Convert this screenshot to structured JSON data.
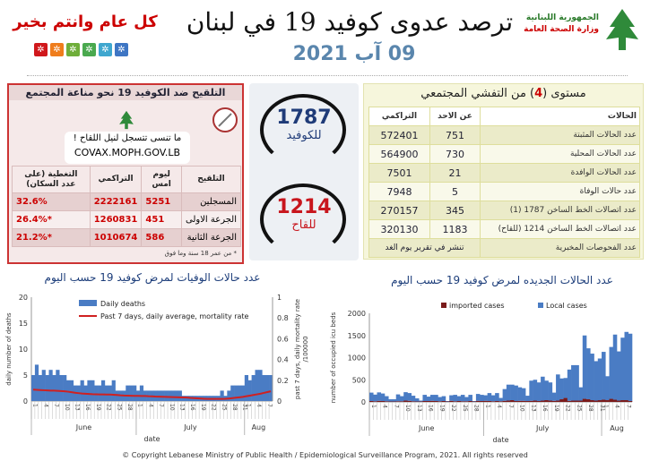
{
  "header": {
    "title": "ترصد عدوى كوفيد 19 في لبنان",
    "date": "09 آب 2021",
    "ministry_line1": "الجمهورية اللبنانية",
    "ministry_line2": "وزارة الصحة العامة",
    "greeting": "كل عام وانتم بخير",
    "square_colors": [
      "#d0181c",
      "#ef7d1c",
      "#6fae3a",
      "#4aa94f",
      "#3fa7cf",
      "#3e76c4"
    ]
  },
  "vaccination": {
    "title": "التلقيح ضد الكوفيد 19  نحو مناعة المجتمع",
    "promo_text": "ما تنسى تتسجل لنيل اللقاح !",
    "promo_url": "COVAX.MOPH.GOV.LB",
    "headers": [
      "التلقيح",
      "ليوم امس",
      "التراكمي",
      "التغطية (على عدد السكان)"
    ],
    "rows": [
      {
        "label": "المسجلين",
        "yesterday": "5251",
        "cumulative": "2222161",
        "coverage": "32.6%"
      },
      {
        "label": "الجرعة الاولى",
        "yesterday": "451",
        "cumulative": "1260831",
        "coverage": "*26.4%"
      },
      {
        "label": "الجرعة الثانية",
        "yesterday": "586",
        "cumulative": "1010674",
        "coverage": "*21.2%"
      }
    ],
    "footnote": "* من عمر 18 سنة وما فوق"
  },
  "hotlines": [
    {
      "number": "1787",
      "label": "للكوفيد",
      "color": "#1f3b78"
    },
    {
      "number": "1214",
      "label": "للقاح",
      "color": "#c8161d"
    }
  ],
  "cases": {
    "title_pre": "مستوى (",
    "level": "4",
    "title_post": ") من التفشي المجتمعي",
    "headers": [
      "الحالات",
      "عن الاحد",
      "التراكمي"
    ],
    "rows": [
      {
        "label": "عدد الحالات المثبتة",
        "today": "751",
        "total": "572401"
      },
      {
        "label": "عدد الحالات المحلية",
        "today": "730",
        "total": "564900"
      },
      {
        "label": "عدد الحالات الوافدة",
        "today": "21",
        "total": "7501"
      },
      {
        "label": "عدد حالات الوفاة",
        "today": "5",
        "total": "7948"
      },
      {
        "label": "عدد اتصالات الخط الساخن 1787  (1)",
        "today": "345",
        "total": "270157"
      },
      {
        "label": "عدد اتصالات الخط الساخن 1214 (للقاح)",
        "today": "1183",
        "total": "320130"
      }
    ],
    "tests_label": "عدد الفحوصات المخبرية",
    "tests_value": "تنشر في تقرير يوم الغد"
  },
  "chart_data": [
    {
      "type": "bar",
      "title": "عدد حالات الوفيات لمرض كوفيد 19 حسب اليوم",
      "xlabel": "date",
      "ylabel": "daily number of deaths",
      "y2label": "past 7 days, daily mortality rate /100000",
      "ylim": [
        0,
        20
      ],
      "y2lim": [
        0,
        1
      ],
      "yticks": [
        "0",
        "5",
        "10",
        "15",
        "20"
      ],
      "y2ticks": [
        "0",
        "0.2",
        "0.4",
        "0.6",
        "0.8",
        "1"
      ],
      "months": [
        "June",
        "July",
        "Aug"
      ],
      "legend": "top-left",
      "series": [
        {
          "name": "Daily deaths",
          "type": "bar",
          "color": "#4a7cc4",
          "values": [
            5,
            7,
            5,
            6,
            5,
            6,
            5,
            6,
            5,
            5,
            4,
            4,
            3,
            3,
            4,
            3,
            4,
            4,
            3,
            3,
            4,
            3,
            3,
            4,
            2,
            2,
            2,
            3,
            3,
            3,
            2,
            3,
            2,
            2,
            2,
            2,
            2,
            2,
            2,
            2,
            2,
            2,
            2,
            1,
            1,
            1,
            1,
            1,
            1,
            1,
            1,
            1,
            1,
            1,
            2,
            1,
            2,
            3,
            3,
            3,
            3,
            5,
            4,
            5,
            6,
            6,
            5,
            5,
            5
          ]
        },
        {
          "name": "Past 7 days, daily average, mortality rate",
          "type": "line",
          "axis": "right",
          "color": "#d02020",
          "values": [
            0.11,
            0.108,
            0.106,
            0.104,
            0.102,
            0.1,
            0.1,
            0.098,
            0.096,
            0.094,
            0.09,
            0.085,
            0.08,
            0.076,
            0.072,
            0.07,
            0.068,
            0.066,
            0.065,
            0.064,
            0.064,
            0.063,
            0.062,
            0.06,
            0.058,
            0.055,
            0.053,
            0.052,
            0.051,
            0.05,
            0.05,
            0.049,
            0.048,
            0.046,
            0.045,
            0.043,
            0.042,
            0.041,
            0.04,
            0.039,
            0.038,
            0.037,
            0.036,
            0.035,
            0.033,
            0.03,
            0.028,
            0.026,
            0.024,
            0.022,
            0.02,
            0.02,
            0.02,
            0.02,
            0.021,
            0.022,
            0.024,
            0.028,
            0.032,
            0.036,
            0.04,
            0.046,
            0.052,
            0.058,
            0.064,
            0.07,
            0.078,
            0.086,
            0.094
          ]
        }
      ]
    },
    {
      "type": "bar",
      "stacked": true,
      "title": "عدد الحالات الجديده لمرض كوفيد 19 حسب اليوم",
      "xlabel": "date",
      "ylabel": "number of occupied icu beds",
      "ylim": [
        0,
        2000
      ],
      "yticks": [
        "0",
        "500",
        "1000",
        "1500",
        "2000"
      ],
      "months": [
        "June",
        "July",
        "Aug"
      ],
      "legend": "top",
      "series": [
        {
          "name": "imported cases",
          "color": "#7a1a1a",
          "values": [
            20,
            15,
            25,
            20,
            15,
            10,
            10,
            15,
            15,
            30,
            25,
            15,
            10,
            10,
            20,
            20,
            25,
            20,
            15,
            20,
            10,
            25,
            15,
            20,
            15,
            15,
            20,
            10,
            25,
            20,
            25,
            20,
            15,
            20,
            15,
            25,
            30,
            40,
            20,
            25,
            25,
            20,
            25,
            30,
            20,
            30,
            40,
            30,
            25,
            30,
            60,
            90,
            25,
            30,
            30,
            30,
            70,
            60,
            40,
            30,
            40,
            50,
            40,
            70,
            50,
            30,
            40,
            40,
            20
          ]
        },
        {
          "name": "Local cases",
          "color": "#4a7cc4",
          "values": [
            190,
            150,
            190,
            170,
            115,
            50,
            50,
            155,
            115,
            190,
            175,
            125,
            70,
            20,
            140,
            100,
            135,
            140,
            95,
            110,
            10,
            125,
            145,
            110,
            145,
            95,
            140,
            10,
            155,
            140,
            125,
            180,
            135,
            180,
            75,
            265,
            360,
            350,
            350,
            305,
            285,
            120,
            455,
            470,
            420,
            540,
            440,
            410,
            185,
            590,
            470,
            450,
            705,
            800,
            800,
            300,
            1430,
            1150,
            1050,
            890,
            940,
            1080,
            540,
            1170,
            1470,
            1110,
            1410,
            1540,
            1520
          ]
        }
      ]
    }
  ],
  "footer": "© Copyright Lebanese Ministry of Public Health / Epidemiological Surveillance Program, 2021. All rights reserved"
}
